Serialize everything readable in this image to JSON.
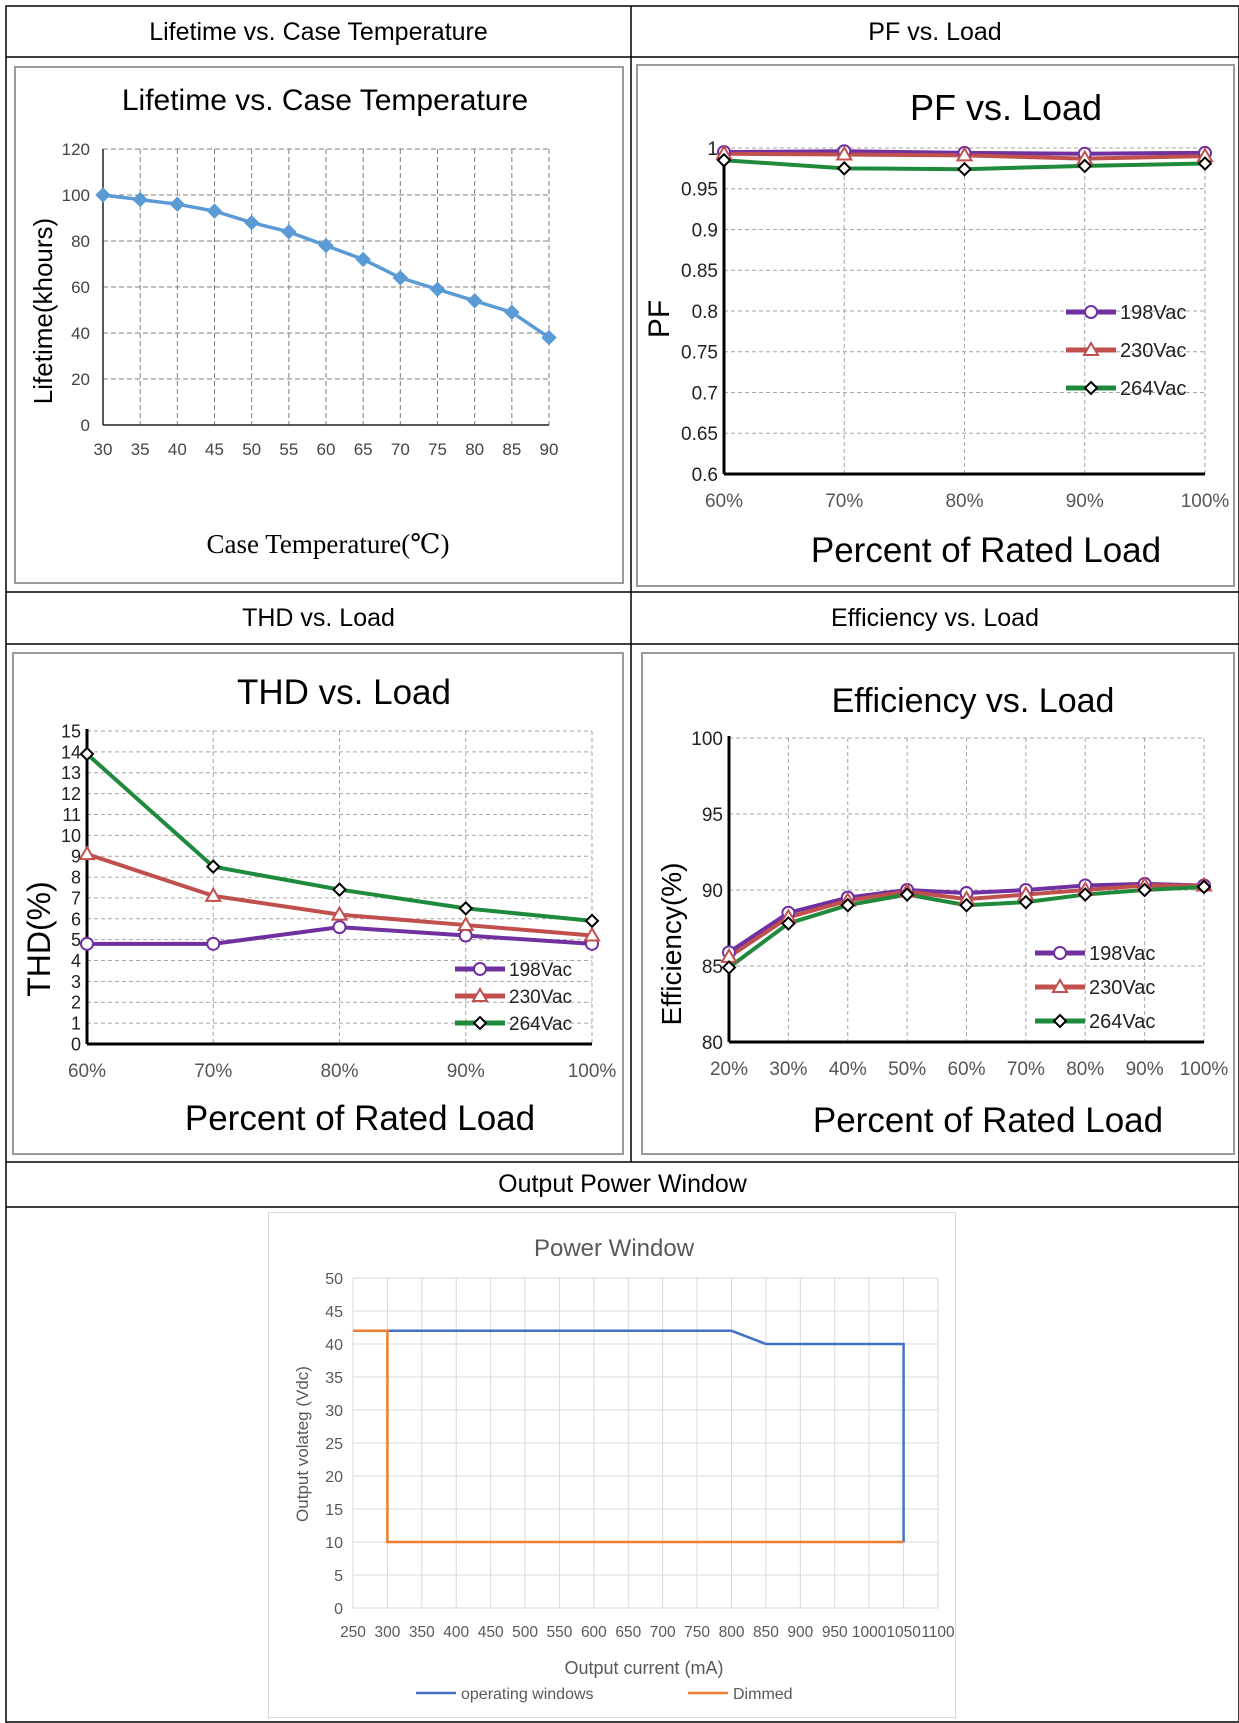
{
  "headers": {
    "lifetime": "Lifetime vs. Case Temperature",
    "pf": "PF vs. Load",
    "thd": "THD vs. Load",
    "efficiency": "Efficiency vs. Load",
    "power": "Output Power Window"
  },
  "colors": {
    "series_198": "#7030a0",
    "series_230": "#c0504d",
    "series_264": "#1f8a3c",
    "lifetime_line": "#5b9bd5",
    "operating": "#4472c4",
    "dimmed": "#ed7d31"
  },
  "chart_data": [
    {
      "id": "lifetime",
      "type": "line",
      "title": "Lifetime vs. Case Temperature",
      "xlabel": "Case Temperature(℃)",
      "ylabel": "Lifetime(khours)",
      "x": [
        30,
        35,
        40,
        45,
        50,
        55,
        60,
        65,
        70,
        75,
        80,
        85,
        90
      ],
      "xlim": [
        30,
        90
      ],
      "ylim": [
        0,
        120
      ],
      "yticks": [
        0,
        20,
        40,
        60,
        80,
        100,
        120
      ],
      "grid": true,
      "series": [
        {
          "values": [
            100,
            98,
            96,
            93,
            88,
            84,
            78,
            72,
            64,
            59,
            54,
            49,
            38
          ]
        }
      ]
    },
    {
      "id": "pf",
      "type": "line",
      "title": "PF vs. Load",
      "xlabel": "Percent of Rated Load",
      "ylabel": "PF",
      "categories": [
        "60%",
        "70%",
        "80%",
        "90%",
        "100%"
      ],
      "ylim": [
        0.6,
        1
      ],
      "yticks": [
        "0.6",
        "0.65",
        "0.7",
        "0.75",
        "0.8",
        "0.85",
        "0.9",
        "0.95",
        "1"
      ],
      "grid": true,
      "legend": "right",
      "series": [
        {
          "name": "198Vac",
          "values": [
            0.995,
            0.996,
            0.994,
            0.993,
            0.994
          ]
        },
        {
          "name": "230Vac",
          "values": [
            0.993,
            0.992,
            0.991,
            0.987,
            0.99
          ]
        },
        {
          "name": "264Vac",
          "values": [
            0.985,
            0.975,
            0.974,
            0.978,
            0.981
          ]
        }
      ]
    },
    {
      "id": "thd",
      "type": "line",
      "title": "THD vs. Load",
      "xlabel": "Percent of Rated Load",
      "ylabel": "THD(%)",
      "categories": [
        "60%",
        "70%",
        "80%",
        "90%",
        "100%"
      ],
      "ylim": [
        0,
        15
      ],
      "yticks": [
        0,
        1,
        2,
        3,
        4,
        5,
        6,
        7,
        8,
        9,
        10,
        11,
        12,
        13,
        14,
        15
      ],
      "grid": true,
      "legend": "bottom-right",
      "series": [
        {
          "name": "198Vac",
          "values": [
            4.8,
            4.8,
            5.6,
            5.2,
            4.8
          ]
        },
        {
          "name": "230Vac",
          "values": [
            9.1,
            7.1,
            6.2,
            5.7,
            5.2
          ]
        },
        {
          "name": "264Vac",
          "values": [
            13.9,
            8.5,
            7.4,
            6.5,
            5.9
          ]
        }
      ]
    },
    {
      "id": "efficiency",
      "type": "line",
      "title": "Efficiency vs. Load",
      "xlabel": "Percent of Rated Load",
      "ylabel": "Efficiency(%)",
      "categories": [
        "20%",
        "30%",
        "40%",
        "50%",
        "60%",
        "70%",
        "80%",
        "90%",
        "100%"
      ],
      "ylim": [
        80,
        100
      ],
      "yticks": [
        80,
        85,
        90,
        95,
        100
      ],
      "grid": true,
      "legend": "bottom-right",
      "series": [
        {
          "name": "198Vac",
          "values": [
            85.9,
            88.5,
            89.5,
            90.0,
            89.8,
            90.0,
            90.3,
            90.4,
            90.3
          ]
        },
        {
          "name": "230Vac",
          "values": [
            85.6,
            88.2,
            89.3,
            89.9,
            89.4,
            89.7,
            90.0,
            90.3,
            90.3
          ]
        },
        {
          "name": "264Vac",
          "values": [
            84.9,
            87.8,
            89.0,
            89.7,
            89.0,
            89.2,
            89.7,
            90.0,
            90.2
          ]
        }
      ]
    },
    {
      "id": "power",
      "type": "line",
      "title": "Power Window",
      "xlabel": "Output current (mA)",
      "ylabel": "Output  volateg (Vdc)",
      "xticks": [
        250,
        300,
        350,
        400,
        450,
        500,
        550,
        600,
        650,
        700,
        750,
        800,
        850,
        900,
        950,
        1000,
        1050,
        1100
      ],
      "xlim": [
        250,
        1100
      ],
      "ylim": [
        0,
        50
      ],
      "yticks": [
        0,
        5,
        10,
        15,
        20,
        25,
        30,
        35,
        40,
        45,
        50
      ],
      "grid": true,
      "legend": "bottom",
      "series": [
        {
          "name": "operating windows",
          "x": [
            250,
            300,
            800,
            850,
            1050,
            1050
          ],
          "values": [
            42,
            42,
            42,
            40,
            40,
            10
          ]
        },
        {
          "name": "Dimmed",
          "x": [
            250,
            300,
            300,
            1050
          ],
          "values": [
            42,
            42,
            10,
            10
          ]
        }
      ]
    }
  ]
}
